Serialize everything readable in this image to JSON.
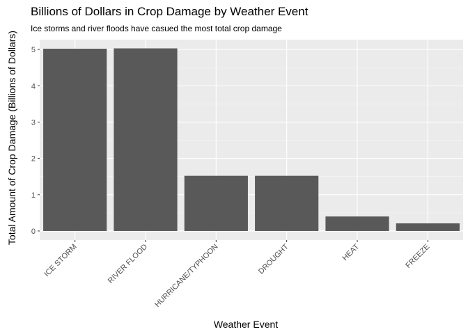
{
  "chart_data": {
    "type": "bar",
    "title": "Billions of Dollars in Crop Damage by Weather Event",
    "subtitle": "Ice storms and river floods have casued the most total crop damage",
    "xlabel": "Weather Event",
    "ylabel": "Total Amount of Crop Damage (Billions of Dollars)",
    "categories": [
      "ICE STORM",
      "RIVER FLOOD",
      "HURRICANE/TYPHOON",
      "DROUGHT",
      "HEAT",
      "FREEZE"
    ],
    "values": [
      5.02,
      5.03,
      1.52,
      1.52,
      0.4,
      0.21
    ],
    "ylim": [
      -0.25,
      5.27
    ],
    "yticks": [
      0,
      1,
      2,
      3,
      4,
      5
    ],
    "grid": true,
    "colors": {
      "bar": "#595959",
      "panel": "#ebebeb",
      "grid_major": "#ffffff",
      "grid_minor": "#f5f5f5",
      "tick_text": "#4d4d4d"
    }
  }
}
